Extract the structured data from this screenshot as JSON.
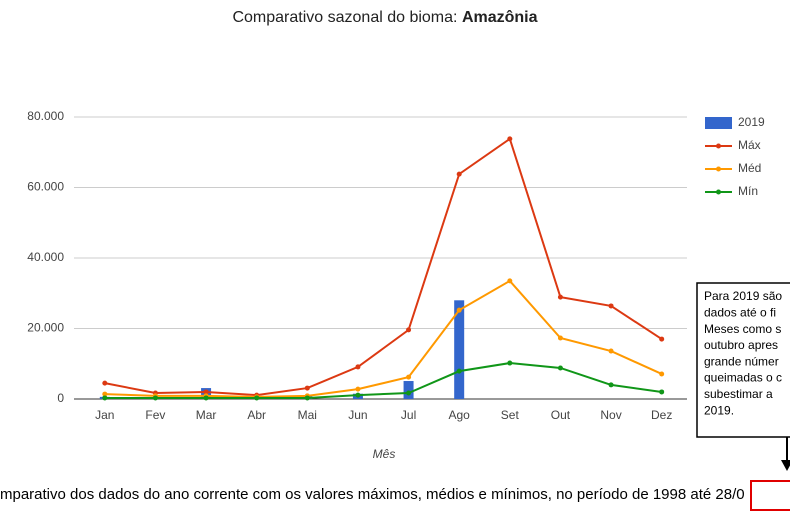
{
  "chart_data": {
    "type": "combo",
    "title": "Comparativo sazonal do bioma:",
    "title_emphasis": "Amazônia",
    "x_label": "Mês",
    "categories": [
      "Jan",
      "Fev",
      "Mar",
      "Abr",
      "Mai",
      "Jun",
      "Jul",
      "Ago",
      "Set",
      "Out",
      "Nov",
      "Dez"
    ],
    "series": [
      {
        "name": "2019",
        "kind": "bar",
        "color": "#3366cc",
        "values": [
          600,
          200,
          3100,
          400,
          800,
          1500,
          5100,
          28000,
          null,
          null,
          null,
          null
        ]
      },
      {
        "name": "Máx",
        "kind": "line",
        "color": "#dc3912",
        "values": [
          4500,
          1700,
          2000,
          1100,
          3100,
          9100,
          19600,
          63800,
          73800,
          28900,
          26400,
          17000
        ]
      },
      {
        "name": "Méd",
        "kind": "line",
        "color": "#ff9900",
        "values": [
          1400,
          900,
          900,
          600,
          900,
          2800,
          6200,
          25200,
          33500,
          17300,
          13600,
          7100
        ]
      },
      {
        "name": "Mín",
        "kind": "line",
        "color": "#109618",
        "values": [
          300,
          300,
          300,
          300,
          300,
          1100,
          1700,
          7900,
          10200,
          8800,
          4000,
          2000
        ]
      }
    ],
    "ylim": [
      0,
      80000
    ],
    "yticks": [
      0,
      {
        "value": 20000,
        "label": "20.000"
      },
      {
        "value": 40000,
        "label": "40.000"
      },
      {
        "value": 60000,
        "label": "60.000"
      },
      {
        "value": 80000,
        "label": "80.000"
      }
    ],
    "grid": true,
    "legend": "right"
  },
  "note": {
    "lines": [
      "Para 2019 são",
      "dados até o fi",
      "Meses como s",
      "outubro apres",
      "grande númer",
      "queimadas o c",
      "subestimar a",
      "2019."
    ]
  },
  "caption": {
    "text": "mparativo dos dados do ano corrente com os valores máximos, médios e mínimos, no período de 1998 até",
    "highlight": "28/0"
  }
}
